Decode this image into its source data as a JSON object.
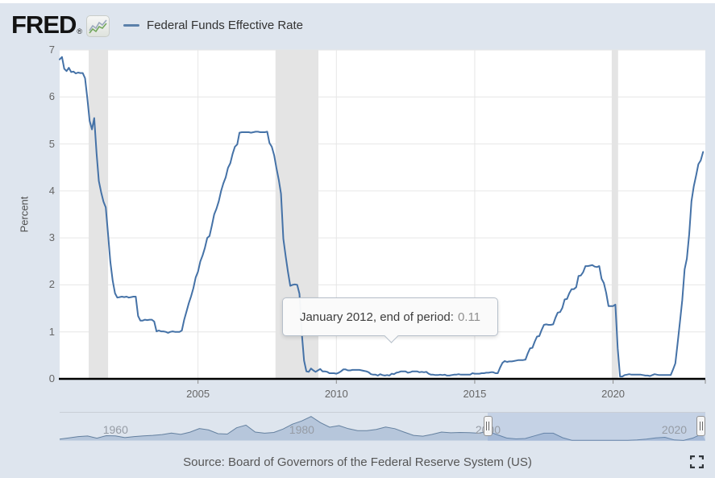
{
  "header": {
    "logo_text": "FRED",
    "registered_mark": "®",
    "legend": {
      "series_label": "Federal Funds Effective Rate",
      "series_color": "#4572a7"
    }
  },
  "tooltip": {
    "label": "January 2012, end of period:",
    "value": "0.11"
  },
  "footer": {
    "source_text": "Source: Board of Governors of the Federal Reserve System (US)"
  },
  "style": {
    "page_bg": "#dee5ee",
    "plot_bg": "#ffffff",
    "grid_color": "#e6e6e6",
    "band_color": "#e4e4e4",
    "axis_color": "#000000",
    "line_color": "#4572a7",
    "nav_fill": "#b6c6db",
    "nav_stroke": "#64809f",
    "nav_border": "#c9ced6",
    "nav_mask": "rgba(110,145,200,0.22)"
  },
  "chart_data": {
    "type": "line",
    "title": "Federal Funds Effective Rate",
    "xlabel": "",
    "ylabel": "Percent",
    "ylim": [
      0,
      7
    ],
    "yticks": [
      0,
      1,
      2,
      3,
      4,
      5,
      6,
      7
    ],
    "xticks": [
      2005,
      2010,
      2015,
      2020
    ],
    "x_range": [
      2000,
      2023.333
    ],
    "grid": true,
    "legend_position": "top",
    "recession_bands": [
      [
        2001.05,
        2001.75
      ],
      [
        2007.8,
        2009.35
      ],
      [
        2019.95,
        2020.18
      ]
    ],
    "highlight_point": {
      "x": 2012.0,
      "label": "January 2012, end of period:",
      "value": 0.11
    },
    "series": [
      {
        "name": "Federal Funds Effective Rate",
        "color": "#4572a7",
        "frequency": "monthly",
        "start": "2000-01",
        "values": [
          6.8,
          6.85,
          6.6,
          6.55,
          6.62,
          6.53,
          6.54,
          6.5,
          6.52,
          6.51,
          6.51,
          6.4,
          5.98,
          5.49,
          5.31,
          5.55,
          4.8,
          4.21,
          3.97,
          3.77,
          3.65,
          3.07,
          2.49,
          2.09,
          1.82,
          1.73,
          1.74,
          1.75,
          1.74,
          1.75,
          1.73,
          1.74,
          1.75,
          1.75,
          1.34,
          1.24,
          1.24,
          1.26,
          1.25,
          1.26,
          1.26,
          1.22,
          1.01,
          1.03,
          1.01,
          1.01,
          1.0,
          0.98,
          1.0,
          1.01,
          1.0,
          1.0,
          1.0,
          1.03,
          1.26,
          1.43,
          1.61,
          1.76,
          1.93,
          2.16,
          2.28,
          2.5,
          2.63,
          2.79,
          3.0,
          3.04,
          3.26,
          3.5,
          3.62,
          3.78,
          4.0,
          4.16,
          4.29,
          4.49,
          4.59,
          4.79,
          4.94,
          4.99,
          5.24,
          5.25,
          5.25,
          5.25,
          5.25,
          5.24,
          5.25,
          5.26,
          5.26,
          5.25,
          5.25,
          5.25,
          5.26,
          5.02,
          4.94,
          4.76,
          4.49,
          4.24,
          3.94,
          2.98,
          2.61,
          2.28,
          1.98,
          2.0,
          2.01,
          2.0,
          1.81,
          0.97,
          0.39,
          0.16,
          0.15,
          0.22,
          0.18,
          0.15,
          0.18,
          0.21,
          0.16,
          0.16,
          0.15,
          0.12,
          0.12,
          0.12,
          0.11,
          0.13,
          0.16,
          0.2,
          0.2,
          0.18,
          0.18,
          0.19,
          0.19,
          0.19,
          0.19,
          0.18,
          0.17,
          0.16,
          0.14,
          0.1,
          0.09,
          0.09,
          0.07,
          0.1,
          0.08,
          0.07,
          0.08,
          0.07,
          0.11,
          0.1,
          0.13,
          0.14,
          0.16,
          0.16,
          0.16,
          0.13,
          0.14,
          0.16,
          0.16,
          0.16,
          0.14,
          0.15,
          0.14,
          0.15,
          0.11,
          0.09,
          0.09,
          0.08,
          0.08,
          0.09,
          0.08,
          0.09,
          0.07,
          0.07,
          0.08,
          0.09,
          0.09,
          0.1,
          0.09,
          0.09,
          0.09,
          0.09,
          0.09,
          0.12,
          0.11,
          0.11,
          0.11,
          0.12,
          0.12,
          0.13,
          0.13,
          0.14,
          0.14,
          0.12,
          0.12,
          0.24,
          0.34,
          0.38,
          0.36,
          0.37,
          0.37,
          0.38,
          0.39,
          0.4,
          0.4,
          0.4,
          0.41,
          0.54,
          0.65,
          0.66,
          0.79,
          0.9,
          0.91,
          1.04,
          1.15,
          1.16,
          1.15,
          1.15,
          1.16,
          1.3,
          1.41,
          1.42,
          1.51,
          1.69,
          1.7,
          1.82,
          1.91,
          1.91,
          1.95,
          2.19,
          2.2,
          2.27,
          2.4,
          2.4,
          2.41,
          2.42,
          2.39,
          2.38,
          2.4,
          2.13,
          2.04,
          1.83,
          1.55,
          1.55,
          1.55,
          1.58,
          0.65,
          0.05,
          0.05,
          0.08,
          0.09,
          0.1,
          0.09,
          0.09,
          0.09,
          0.09,
          0.09,
          0.08,
          0.07,
          0.07,
          0.06,
          0.08,
          0.1,
          0.09,
          0.08,
          0.08,
          0.08,
          0.08,
          0.08,
          0.08,
          0.2,
          0.33,
          0.77,
          1.21,
          1.68,
          2.33,
          2.56,
          3.08,
          3.78,
          4.1,
          4.33,
          4.57,
          4.65,
          4.83
        ]
      }
    ],
    "navigator": {
      "type": "area",
      "x_range": [
        1954,
        2023.333
      ],
      "xticks": [
        1960,
        1980,
        2000,
        2020
      ],
      "selected_range": [
        2000,
        2023.333
      ],
      "ymax": 19,
      "frequency": "yearly",
      "start_year": 1954,
      "values": [
        1.0,
        1.8,
        2.7,
        3.1,
        1.6,
        3.3,
        3.2,
        2.0,
        2.7,
        3.2,
        3.5,
        4.1,
        5.1,
        4.2,
        5.7,
        8.2,
        7.2,
        4.7,
        4.4,
        8.7,
        10.5,
        5.8,
        5.0,
        5.5,
        7.9,
        11.2,
        13.4,
        16.4,
        12.2,
        9.1,
        10.2,
        8.1,
        6.8,
        6.7,
        7.6,
        9.2,
        8.1,
        5.7,
        3.5,
        3.0,
        4.2,
        5.8,
        5.3,
        5.5,
        5.4,
        5.0,
        6.2,
        3.9,
        1.7,
        1.1,
        1.4,
        3.2,
        5.0,
        5.0,
        1.9,
        0.16,
        0.18,
        0.1,
        0.14,
        0.11,
        0.09,
        0.13,
        0.4,
        1.0,
        1.8,
        2.2,
        0.4,
        0.08,
        1.7,
        4.6
      ]
    }
  }
}
